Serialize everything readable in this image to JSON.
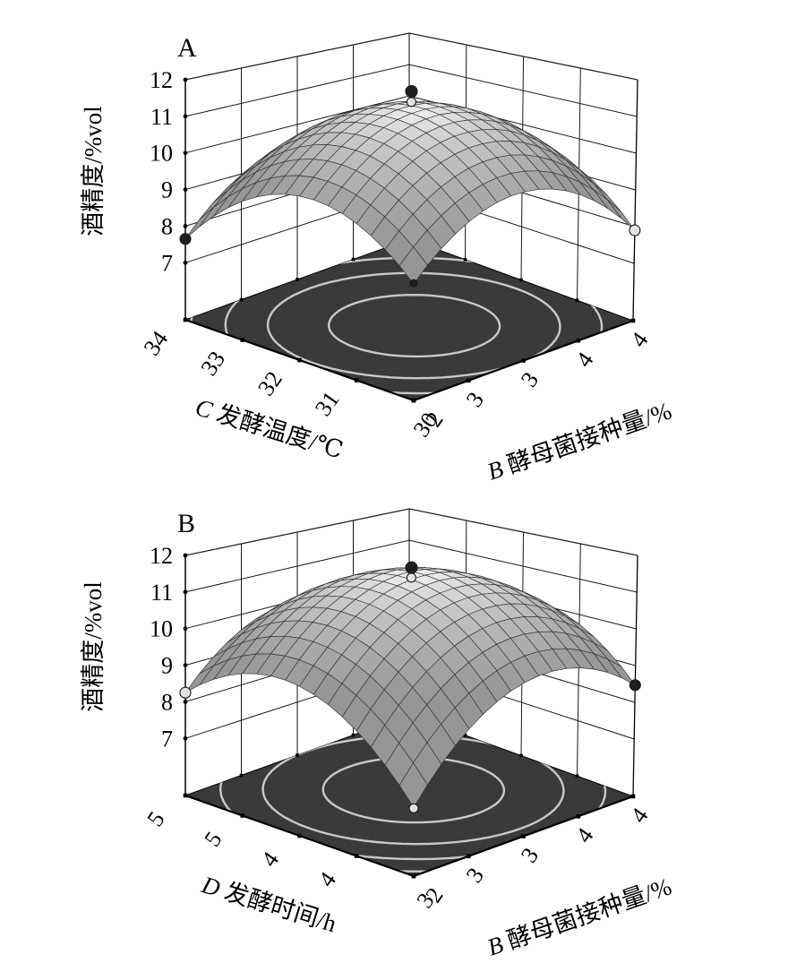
{
  "figure_background": "#ffffff",
  "colors": {
    "floor": "#3a3a3a",
    "contour_line": "#c9c9c9",
    "mesh_line": "#333333",
    "wall_line": "#1a1a1a",
    "axis_line": "#000000",
    "dark_point_fill": "#1f1f1f",
    "light_point_fill": "#e3e3e3",
    "point_stroke": "#1a1a1a"
  },
  "chart_data": [
    {
      "type": "surface3d",
      "panel_label": "A",
      "z_axis": {
        "title": "酒精度/%vol",
        "tick_labels": [
          "12",
          "11",
          "10",
          "9",
          "8",
          "7"
        ],
        "tick_values": [
          12,
          11,
          10,
          9,
          8,
          7
        ],
        "range": [
          7,
          12
        ]
      },
      "left_axis": {
        "factor": "C",
        "title": "发酵温度/℃",
        "tick_labels": [
          "34",
          "33",
          "32",
          "31",
          "30"
        ],
        "tick_values": [
          34,
          33,
          32,
          31,
          30
        ]
      },
      "right_axis": {
        "factor": "B",
        "title": "酵母菌接种量/%",
        "tick_labels": [
          "2",
          "3",
          "3",
          "4",
          "4"
        ],
        "tick_values": [
          2,
          2.5,
          3,
          3.5,
          4
        ]
      },
      "surface": {
        "center_z": 11.5,
        "front_corner_z": 8.6,
        "left_corner_z": 7.65,
        "right_corner_z": 7.9,
        "back_corner_z": 7.6
      },
      "contour_levels": [
        11,
        10,
        9,
        8
      ],
      "design_points": [
        {
          "label": "left-edge-point",
          "u": -1,
          "v": 1,
          "z": 7.65,
          "shade": "dark",
          "r": 6
        },
        {
          "label": "right-edge-point",
          "u": 1,
          "v": -1,
          "z": 7.9,
          "shade": "light",
          "r": 6
        },
        {
          "label": "front-corner-point",
          "u": -1,
          "v": -1,
          "z": 8.62,
          "shade": "dark",
          "r": 4
        },
        {
          "label": "center-point-lower",
          "u": 0,
          "v": 0,
          "z": 11.6,
          "shade": "light",
          "r": 5
        },
        {
          "label": "center-point-upper",
          "u": 0,
          "v": 0,
          "z": 11.9,
          "shade": "dark",
          "r": 6.5
        }
      ]
    },
    {
      "type": "surface3d",
      "panel_label": "B",
      "z_axis": {
        "title": "酒精度/%vol",
        "tick_labels": [
          "12",
          "11",
          "10",
          "9",
          "8",
          "7"
        ],
        "tick_values": [
          12,
          11,
          10,
          9,
          8,
          7
        ],
        "range": [
          7,
          12
        ]
      },
      "left_axis": {
        "factor": "D",
        "title": "发酵时间/h",
        "tick_labels": [
          "5",
          "5",
          "4",
          "4",
          "3"
        ],
        "tick_values": [
          5,
          4.5,
          4,
          3.5,
          3
        ]
      },
      "right_axis": {
        "factor": "B",
        "title": "酵母菌接种量/%",
        "tick_labels": [
          "2",
          "3",
          "3",
          "4",
          "4"
        ],
        "tick_values": [
          2,
          2.5,
          3,
          3.5,
          4
        ]
      },
      "surface": {
        "center_z": 11.55,
        "front_corner_z": 7.3,
        "left_corner_z": 8.25,
        "right_corner_z": 8.47,
        "back_corner_z": 8.3
      },
      "contour_levels": [
        11,
        10,
        9,
        8,
        7.5
      ],
      "design_points": [
        {
          "label": "left-edge-point",
          "u": -1,
          "v": 1,
          "z": 8.25,
          "shade": "light",
          "r": 6
        },
        {
          "label": "right-edge-point",
          "u": 1,
          "v": -1,
          "z": 8.47,
          "shade": "dark",
          "r": 6
        },
        {
          "label": "front-corner-point",
          "u": -1,
          "v": -1,
          "z": 7.28,
          "shade": "light",
          "r": 5
        },
        {
          "label": "center-point-lower",
          "u": 0,
          "v": 0,
          "z": 11.6,
          "shade": "light",
          "r": 5
        },
        {
          "label": "center-point-upper",
          "u": 0,
          "v": 0,
          "z": 11.88,
          "shade": "dark",
          "r": 6.5
        }
      ]
    }
  ]
}
